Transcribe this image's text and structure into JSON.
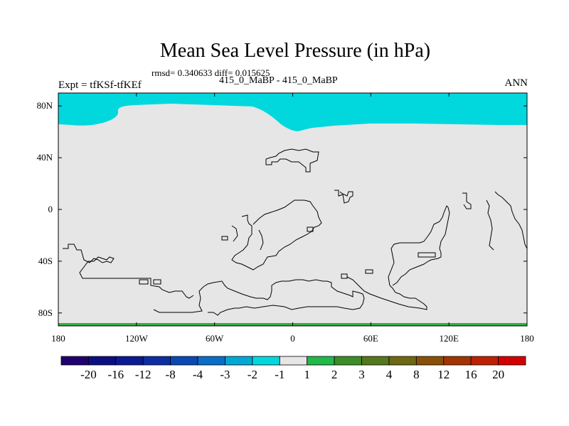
{
  "header": {
    "title": "Mean Sea Level Pressure (in hPa)",
    "stats": "rmsd= 0.340633 diff= 0.015625",
    "subtitle": "415_0_MaBP - 415_0_MaBP",
    "experiment": "Expt = tfKSf-tfKEf",
    "season": "ANN"
  },
  "map": {
    "x_ticks": [
      "180",
      "120W",
      "60W",
      "0",
      "60E",
      "120E",
      "180"
    ],
    "y_ticks": [
      "80N",
      "40N",
      "0",
      "40S",
      "80S"
    ],
    "lon_range": [
      -180,
      180
    ],
    "lat_range": [
      -90,
      90
    ],
    "fill_colors": {
      "background": "#e6e6e6",
      "negative_band": "#00d8de",
      "positive_band": "#2fb040"
    }
  },
  "colorbar": {
    "labels": [
      "-20",
      "-16",
      "-12",
      "-8",
      "-4",
      "-3",
      "-2",
      "-1",
      "1",
      "2",
      "3",
      "4",
      "8",
      "12",
      "16",
      "20"
    ],
    "colors": [
      "#20006e",
      "#0c0f82",
      "#0b1a94",
      "#0c2ea4",
      "#0a48b4",
      "#0a6ec6",
      "#00a8d6",
      "#00d8de",
      "#e6e6e6",
      "#22b84a",
      "#3c8c28",
      "#54781c",
      "#6e6812",
      "#8a5008",
      "#a43404",
      "#c02002",
      "#d40000"
    ]
  }
}
